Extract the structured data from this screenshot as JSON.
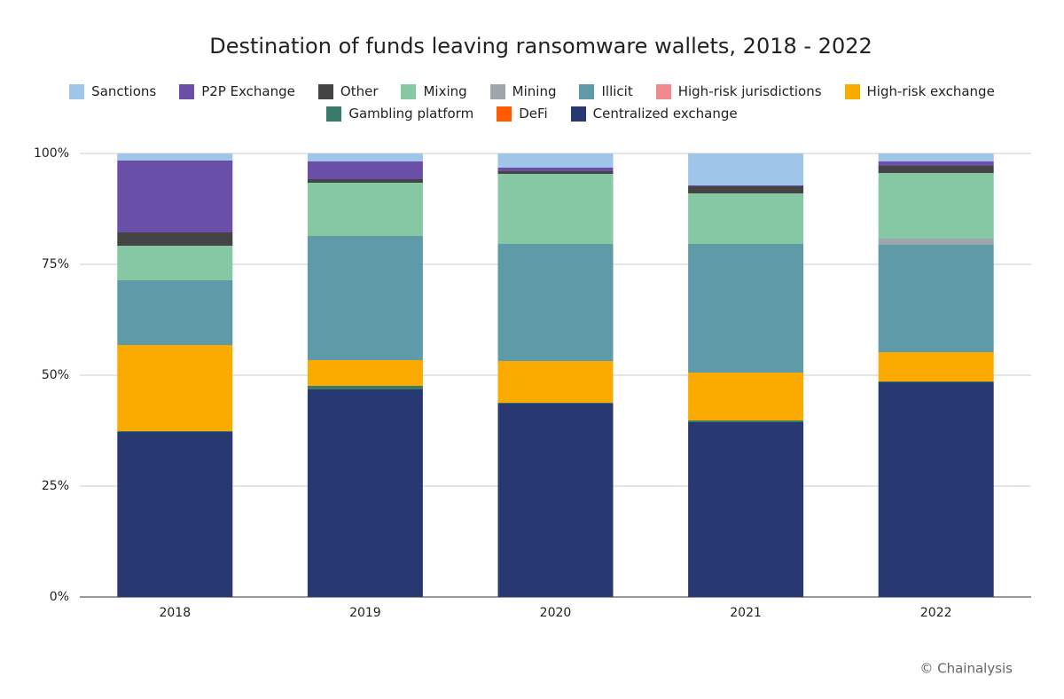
{
  "chart_data": {
    "type": "stacked_bar",
    "title": "Destination of funds leaving ransomware wallets, 2018 - 2022",
    "credit": "© Chainalysis",
    "categories": [
      "2018",
      "2019",
      "2020",
      "2021",
      "2022"
    ],
    "ylim": [
      0,
      100
    ],
    "yticks": [
      {
        "value": 0,
        "label": "0%"
      },
      {
        "value": 25,
        "label": "25%"
      },
      {
        "value": 50,
        "label": "50%"
      },
      {
        "value": 75,
        "label": "75%"
      },
      {
        "value": 100,
        "label": "100%"
      }
    ],
    "grid": true,
    "legend": "top",
    "series": [
      {
        "name": "Sanctions",
        "color": "#9fc5e8",
        "values": [
          1.6,
          1.8,
          3.2,
          7.2,
          1.8
        ]
      },
      {
        "name": "P2P Exchange",
        "color": "#6a4fa8",
        "values": [
          16.2,
          4.0,
          0.8,
          0.2,
          1.0
        ]
      },
      {
        "name": "Other",
        "color": "#444444",
        "values": [
          3.0,
          0.8,
          0.6,
          1.6,
          1.6
        ]
      },
      {
        "name": "Mixing",
        "color": "#86c7a4",
        "values": [
          7.8,
          12.0,
          15.8,
          11.4,
          14.8
        ]
      },
      {
        "name": "Mining",
        "color": "#9ea5ac",
        "values": [
          0,
          0,
          0,
          0,
          1.4
        ]
      },
      {
        "name": "Illicit",
        "color": "#5e9aa8",
        "values": [
          14.6,
          28.0,
          26.4,
          29.0,
          24.2
        ]
      },
      {
        "name": "High-risk jurisdictions",
        "color": "#f08a8e",
        "values": [
          0,
          0,
          0,
          0,
          0
        ]
      },
      {
        "name": "High-risk exchange",
        "color": "#fbab00",
        "values": [
          19.4,
          5.8,
          9.4,
          10.8,
          6.6
        ]
      },
      {
        "name": "Gambling platform",
        "color": "#3a7a68",
        "values": [
          0.2,
          0.8,
          0.2,
          0.4,
          0.2
        ]
      },
      {
        "name": "DeFi",
        "color": "#ff5a00",
        "values": [
          0,
          0,
          0,
          0,
          0
        ]
      },
      {
        "name": "Centralized exchange",
        "color": "#283870",
        "values": [
          37.2,
          46.8,
          43.6,
          39.4,
          48.4
        ]
      }
    ]
  }
}
